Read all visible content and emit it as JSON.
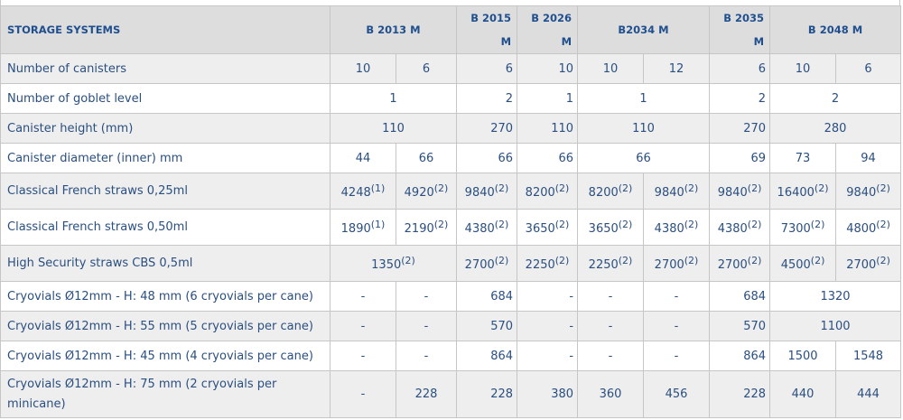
{
  "header": {
    "label": "STORAGE SYSTEMS",
    "models": [
      "B 2013 M",
      "B 2015 M",
      "B 2026 M",
      "B2034 M",
      "B 2035 M",
      "B 2048 M"
    ]
  },
  "rows": [
    {
      "label": "Number of canisters",
      "cells": [
        {
          "v": "10"
        },
        {
          "v": "6"
        },
        {
          "v": "6",
          "a": "r"
        },
        {
          "v": "10",
          "a": "r"
        },
        {
          "v": "10"
        },
        {
          "v": "12"
        },
        {
          "v": "6",
          "a": "r"
        },
        {
          "v": "10"
        },
        {
          "v": "6"
        }
      ]
    },
    {
      "label": "Number of goblet level",
      "cells": [
        {
          "v": "1",
          "span": 2
        },
        {
          "v": "2",
          "a": "r"
        },
        {
          "v": "1",
          "a": "r"
        },
        {
          "v": "1",
          "span": 2
        },
        {
          "v": "2",
          "a": "r"
        },
        {
          "v": "2",
          "span": 2
        }
      ]
    },
    {
      "label": "Canister height (mm)",
      "cells": [
        {
          "v": "110",
          "span": 2
        },
        {
          "v": "270",
          "a": "r"
        },
        {
          "v": "110",
          "a": "r"
        },
        {
          "v": "110",
          "span": 2
        },
        {
          "v": "270",
          "a": "r"
        },
        {
          "v": "280",
          "span": 2
        }
      ]
    },
    {
      "label": "Canister diameter (inner) mm",
      "cells": [
        {
          "v": "44"
        },
        {
          "v": "66"
        },
        {
          "v": "66",
          "a": "r"
        },
        {
          "v": "66",
          "a": "r"
        },
        {
          "v": "66",
          "span": 2
        },
        {
          "v": "69",
          "a": "r"
        },
        {
          "v": "73"
        },
        {
          "v": "94"
        }
      ]
    },
    {
      "label": "Classical French straws 0,25ml",
      "cells": [
        {
          "v": "4248",
          "n": "(1)"
        },
        {
          "v": "4920",
          "n": "(2)"
        },
        {
          "v": "9840",
          "n": "(2)"
        },
        {
          "v": "8200",
          "n": "(2)"
        },
        {
          "v": "8200",
          "n": "(2)"
        },
        {
          "v": "9840",
          "n": "(2)"
        },
        {
          "v": "9840",
          "n": "(2)"
        },
        {
          "v": "16400",
          "n": "(2)"
        },
        {
          "v": "9840",
          "n": "(2)"
        }
      ]
    },
    {
      "label": "Classical French straws 0,50ml",
      "cells": [
        {
          "v": "1890",
          "n": "(1)"
        },
        {
          "v": "2190",
          "n": "(2)"
        },
        {
          "v": "4380",
          "n": "(2)"
        },
        {
          "v": "3650",
          "n": "(2)"
        },
        {
          "v": "3650",
          "n": "(2)"
        },
        {
          "v": "4380",
          "n": "(2)"
        },
        {
          "v": "4380",
          "n": "(2)"
        },
        {
          "v": "7300",
          "n": "(2)"
        },
        {
          "v": "4800",
          "n": "(2)"
        }
      ]
    },
    {
      "label": "High Security straws CBS 0,5ml",
      "cells": [
        {
          "v": "1350",
          "n": "(2)",
          "span": 2
        },
        {
          "v": "2700",
          "n": "(2)"
        },
        {
          "v": "2250",
          "n": "(2)"
        },
        {
          "v": "2250",
          "n": "(2)"
        },
        {
          "v": "2700",
          "n": "(2)"
        },
        {
          "v": "2700",
          "n": "(2)"
        },
        {
          "v": "4500",
          "n": "(2)"
        },
        {
          "v": "2700",
          "n": "(2)"
        }
      ]
    },
    {
      "label": "Cryovials Ø12mm - H: 48 mm (6 cryovials per cane)",
      "cells": [
        {
          "v": "-"
        },
        {
          "v": "-"
        },
        {
          "v": "684",
          "a": "r"
        },
        {
          "v": "-",
          "a": "r"
        },
        {
          "v": "-"
        },
        {
          "v": "-"
        },
        {
          "v": "684",
          "a": "r"
        },
        {
          "v": "1320",
          "span": 2
        }
      ]
    },
    {
      "label": "Cryovials Ø12mm - H: 55 mm (5 cryovials per cane)",
      "cells": [
        {
          "v": "-"
        },
        {
          "v": "-"
        },
        {
          "v": "570",
          "a": "r"
        },
        {
          "v": "-",
          "a": "r"
        },
        {
          "v": "-"
        },
        {
          "v": "-"
        },
        {
          "v": "570",
          "a": "r"
        },
        {
          "v": "1100",
          "span": 2
        }
      ]
    },
    {
      "label": "Cryovials Ø12mm - H: 45 mm (4 cryovials per cane)",
      "cells": [
        {
          "v": "-"
        },
        {
          "v": "-"
        },
        {
          "v": "864",
          "a": "r"
        },
        {
          "v": "-",
          "a": "r"
        },
        {
          "v": "-"
        },
        {
          "v": "-"
        },
        {
          "v": "864",
          "a": "r"
        },
        {
          "v": "1500"
        },
        {
          "v": "1548"
        }
      ]
    },
    {
      "label": "Cryovials Ø12mm - H: 75 mm (2 cryovials per minicane)",
      "cells": [
        {
          "v": "-"
        },
        {
          "v": "228"
        },
        {
          "v": "228",
          "a": "r"
        },
        {
          "v": "380",
          "a": "r"
        },
        {
          "v": "360"
        },
        {
          "v": "456"
        },
        {
          "v": "228",
          "a": "r"
        },
        {
          "v": "440"
        },
        {
          "v": "444"
        }
      ]
    }
  ]
}
